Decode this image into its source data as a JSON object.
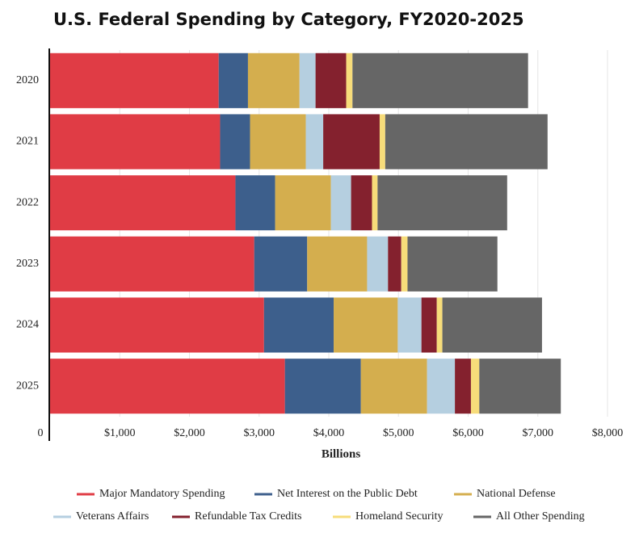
{
  "chart_data": {
    "type": "stacked-bar-horizontal",
    "title": "U.S. Federal Spending by Category, FY2020-2025",
    "x_label": "Billions",
    "categories": [
      "2020",
      "2021",
      "2022",
      "2023",
      "2024",
      "2025"
    ],
    "series": [
      {
        "name": "Major Mandatory Spending",
        "color": "#e03c45",
        "values": [
          2420,
          2440,
          2660,
          2930,
          3070,
          3370
        ]
      },
      {
        "name": "Net Interest on the Public Debt",
        "color": "#3d5f8c",
        "values": [
          420,
          430,
          570,
          760,
          1000,
          1090
        ]
      },
      {
        "name": "National Defense",
        "color": "#d4ae4e",
        "values": [
          740,
          800,
          800,
          860,
          920,
          950
        ]
      },
      {
        "name": "Veterans Affairs",
        "color": "#b5cfe0",
        "values": [
          230,
          250,
          290,
          300,
          340,
          400
        ]
      },
      {
        "name": "Refundable Tax Credits",
        "color": "#84212e",
        "values": [
          440,
          810,
          300,
          190,
          220,
          230
        ]
      },
      {
        "name": "Homeland Security",
        "color": "#f7dc7a",
        "values": [
          90,
          80,
          80,
          90,
          80,
          120
        ]
      },
      {
        "name": "All Other Spending",
        "color": "#666666",
        "values": [
          2520,
          2330,
          1860,
          1290,
          1430,
          1170
        ]
      }
    ],
    "xlim": [
      0,
      8000
    ],
    "xticks": [
      0,
      {
        "value": 1000,
        "label": "$1,000"
      },
      {
        "value": 2000,
        "label": "$2,000"
      },
      {
        "value": 3000,
        "label": "$3,000"
      },
      {
        "value": 4000,
        "label": "$4,000"
      },
      {
        "value": 5000,
        "label": "$5,000"
      },
      {
        "value": 6000,
        "label": "$6,000"
      },
      {
        "value": 7000,
        "label": "$7,000"
      },
      {
        "value": 8000,
        "label": "$8,000"
      }
    ],
    "grid": true,
    "legend": "bottom"
  }
}
